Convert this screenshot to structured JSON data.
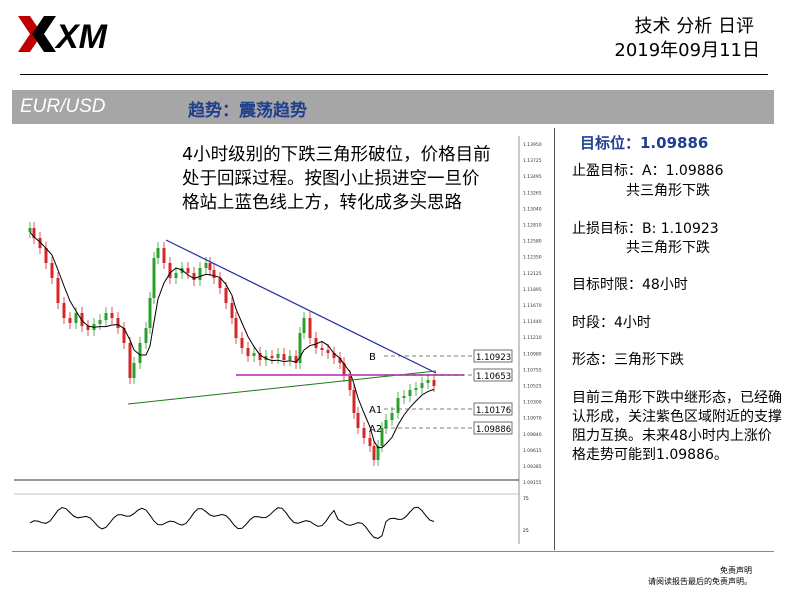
{
  "header": {
    "logo_text": "XM",
    "title": "技术 分析 日评",
    "date": "2019年09月11日"
  },
  "band": {
    "pair": "EUR/USD",
    "trend": "趋势：震荡趋势"
  },
  "chart": {
    "note": "4小时级别的下跌三角形破位，价格目前处于回踩过程。按图小止损进空一旦价格站上蓝色线上方，转化成多头思路",
    "labels": {
      "B": "B",
      "A1": "A1",
      "A2": "A2",
      "level_b": "1.10923",
      "level_pink": "1.10653",
      "level_a1": "1.10176",
      "level_a2": "1.09886"
    },
    "axis_ticks": [
      "1.13950",
      "1.13725",
      "1.13495",
      "1.13265",
      "1.13040",
      "1.12810",
      "1.12580",
      "1.12350",
      "1.12125",
      "1.11895",
      "1.11670",
      "1.11440",
      "1.11210",
      "1.10980",
      "1.10755",
      "1.10525",
      "1.10300",
      "1.10070",
      "1.09840",
      "1.09615",
      "1.09385",
      "1.09155"
    ],
    "osc_ticks": [
      "75",
      "25"
    ],
    "colors": {
      "up": "#2ca02c",
      "down": "#d62728",
      "ma": "#000000",
      "triangle": "#1f2fa0",
      "support": "#c040c0"
    }
  },
  "panel": {
    "target_title": "目标位：1.09886",
    "tp_label": "止盈目标：A：1.09886",
    "tp_sub": "共三角形下跌",
    "sl_label": "止损目标：B: 1.10923",
    "sl_sub": "共三角形下跌",
    "time_limit": "目标时限：48小时",
    "timeframe": "时段：4小时",
    "pattern": "形态：三角形下跌",
    "summary": "目前三角形下跌中继形态，已经确认形成，关注紫色区域附近的支撑阻力互换。未来48小时内上涨价格走势可能到1.09886。"
  },
  "footer": {
    "line1": "免责声明",
    "line2": "请阅读报告最后的免责声明。"
  }
}
